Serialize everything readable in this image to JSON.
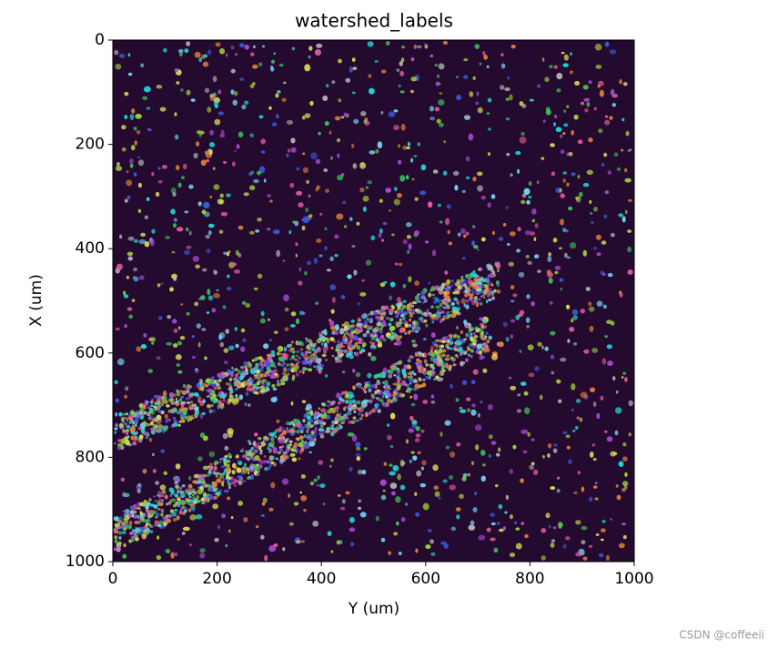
{
  "chart_data": {
    "type": "image",
    "title": "watershed_labels",
    "xlabel": "Y (um)",
    "ylabel": "X (um)",
    "xlim": [
      0,
      1000
    ],
    "xticks": [
      0,
      200,
      400,
      600,
      800,
      1000
    ],
    "ylim": [
      1000,
      0
    ],
    "yticks": [
      0,
      200,
      400,
      600,
      800,
      1000
    ],
    "background": "#240a2e",
    "palette": [
      "#9fd13a",
      "#20d4d4",
      "#3a5bd9",
      "#a94bd6",
      "#b0b0b0",
      "#e05a9a",
      "#d9d95a",
      "#3bbf5a",
      "#e0823a",
      "#6fd0f0"
    ]
  },
  "watermark": "CSDN @coffeeii"
}
